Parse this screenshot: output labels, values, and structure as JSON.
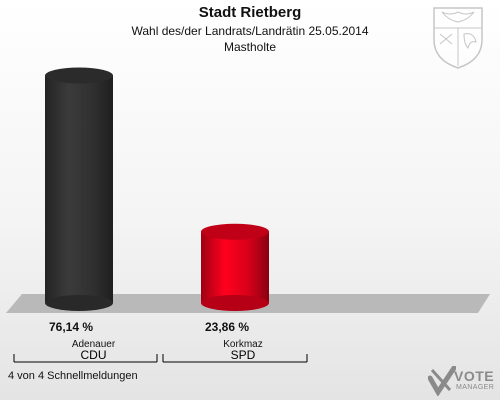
{
  "header": {
    "title": "Stadt Rietberg",
    "subtitle": "Wahl des/der Landrats/Landrätin 25.05.2014",
    "district": "Mastholte"
  },
  "footer": {
    "status": "4 von 4 Schnellmeldungen"
  },
  "logo": {
    "brand": "VOTE",
    "tagline": "MANAGER"
  },
  "crest": {
    "icon": "nrw-coat-of-arms-icon"
  },
  "colors": {
    "cdu": "#333333",
    "spd": "#e2001a",
    "floor": "#b9b9b9"
  },
  "chart_data": {
    "type": "bar",
    "title": "Stadt Rietberg",
    "categories": [
      "Adenauer",
      "Korkmaz"
    ],
    "parties": [
      "CDU",
      "SPD"
    ],
    "values": [
      76.14,
      23.86
    ],
    "value_labels": [
      "76,14 %",
      "23,86 %"
    ],
    "colors": [
      "#333333",
      "#e2001a"
    ],
    "unit": "%",
    "ylim": [
      0,
      80
    ],
    "grid": false,
    "legend": "none"
  }
}
